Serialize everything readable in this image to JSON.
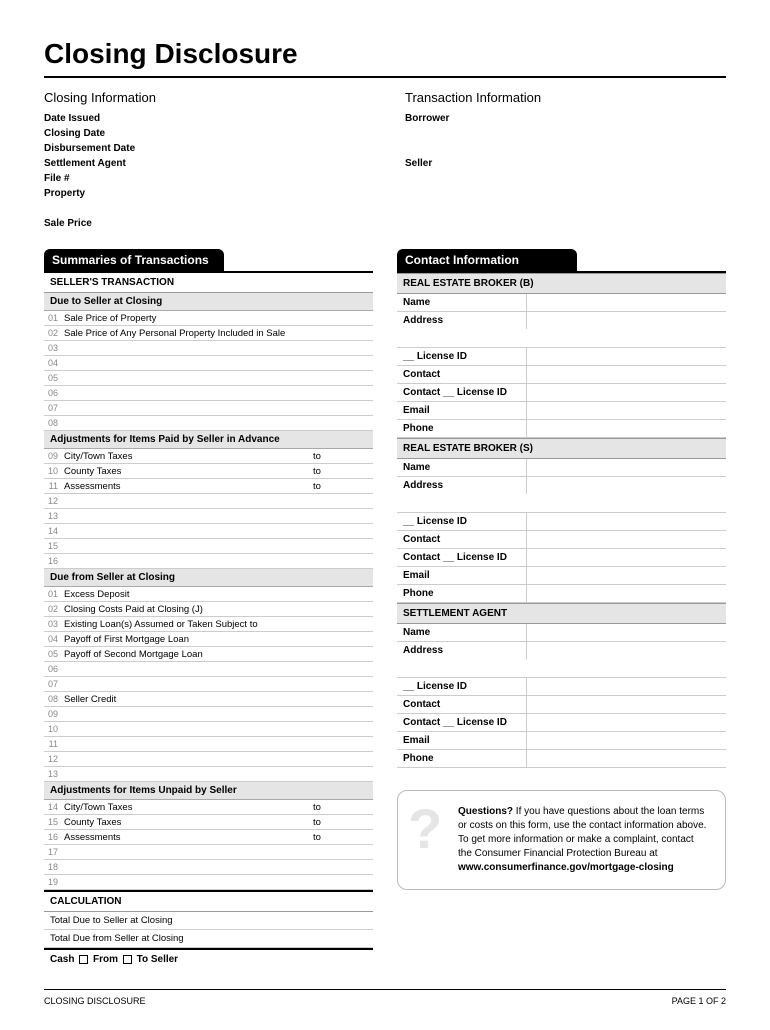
{
  "title": "Closing Disclosure",
  "closingInfo": {
    "heading": "Closing  Information",
    "labels": [
      "Date Issued",
      "Closing Date",
      "Disbursement Date",
      "Settlement Agent",
      "File #",
      "Property",
      "",
      "Sale Price"
    ]
  },
  "transactionInfo": {
    "heading": "Transaction  Information",
    "labels": [
      "Borrower",
      "",
      "",
      "Seller"
    ]
  },
  "summaries": {
    "header": "Summaries of Transactions",
    "sellerTrans": "SELLER'S TRANSACTION",
    "dueToSeller": "Due to Seller at Closing",
    "saleRows": [
      {
        "n": "01",
        "label": "Sale Price of Property"
      },
      {
        "n": "02",
        "label": "Sale Price of Any Personal Property Included in Sale"
      },
      {
        "n": "03",
        "label": ""
      },
      {
        "n": "04",
        "label": ""
      },
      {
        "n": "05",
        "label": ""
      },
      {
        "n": "06",
        "label": ""
      },
      {
        "n": "07",
        "label": ""
      },
      {
        "n": "08",
        "label": ""
      }
    ],
    "adjAdvance": "Adjustments for Items Paid by Seller in Advance",
    "advRows": [
      {
        "n": "09",
        "label": "City/Town Taxes",
        "to": "to"
      },
      {
        "n": "10",
        "label": "County Taxes",
        "to": "to"
      },
      {
        "n": "11",
        "label": "Assessments",
        "to": "to"
      },
      {
        "n": "12",
        "label": ""
      },
      {
        "n": "13",
        "label": ""
      },
      {
        "n": "14",
        "label": ""
      },
      {
        "n": "15",
        "label": ""
      },
      {
        "n": "16",
        "label": ""
      }
    ],
    "dueFromSeller": "Due from Seller at Closing",
    "fromRows": [
      {
        "n": "01",
        "label": "Excess Deposit"
      },
      {
        "n": "02",
        "label": "Closing Costs Paid at Closing (J)"
      },
      {
        "n": "03",
        "label": "Existing Loan(s) Assumed or Taken Subject to"
      },
      {
        "n": "04",
        "label": "Payoff of First Mortgage Loan"
      },
      {
        "n": "05",
        "label": "Payoff of Second Mortgage Loan"
      },
      {
        "n": "06",
        "label": ""
      },
      {
        "n": "07",
        "label": ""
      },
      {
        "n": "08",
        "label": "Seller Credit"
      },
      {
        "n": "09",
        "label": ""
      },
      {
        "n": "10",
        "label": ""
      },
      {
        "n": "11",
        "label": ""
      },
      {
        "n": "12",
        "label": ""
      },
      {
        "n": "13",
        "label": ""
      }
    ],
    "adjUnpaid": "Adjustments for Items Unpaid by Seller",
    "unpaidRows": [
      {
        "n": "14",
        "label": "City/Town Taxes",
        "to": "to"
      },
      {
        "n": "15",
        "label": "County Taxes",
        "to": "to"
      },
      {
        "n": "16",
        "label": "Assessments",
        "to": "to"
      },
      {
        "n": "17",
        "label": ""
      },
      {
        "n": "18",
        "label": ""
      },
      {
        "n": "19",
        "label": ""
      }
    ],
    "calc": "CALCULATION",
    "calcRows": [
      "Total Due to Seller at Closing",
      "Total Due from Seller at Closing"
    ],
    "cashLabel": "Cash",
    "cashFrom": "From",
    "cashTo": "To Seller"
  },
  "contact": {
    "header": "Contact Information",
    "sections": [
      {
        "title": "REAL ESTATE BROKER (B)"
      },
      {
        "title": "REAL ESTATE BROKER (S)"
      },
      {
        "title": "SETTLEMENT AGENT"
      }
    ],
    "fields": [
      "Name",
      "Address",
      "__ License ID",
      "Contact",
      "Contact __ License ID",
      "Email",
      "Phone"
    ]
  },
  "questions": {
    "bold": "Questions?",
    "text": " If you have questions about the loan terms or costs on this form, use the contact information above. To get more information or make a complaint, contact the Consumer Financial Protection Bureau at ",
    "url": "www.consumerfinance.gov/mortgage-closing"
  },
  "footer": {
    "left": "CLOSING DISCLOSURE",
    "right": "PAGE 1 OF 2"
  }
}
